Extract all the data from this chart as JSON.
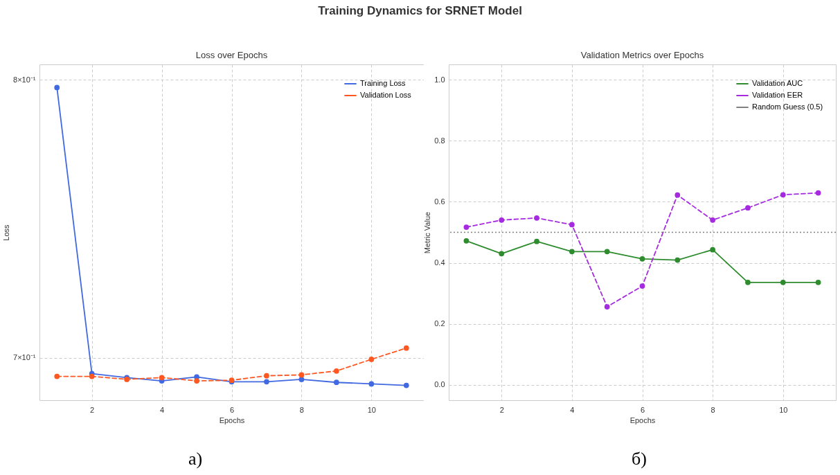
{
  "chart_data": [
    {
      "type": "line",
      "title": "Loss over Epochs",
      "xlabel": "Epochs",
      "ylabel": "Loss",
      "x": [
        1,
        2,
        3,
        4,
        5,
        6,
        7,
        8,
        9,
        10,
        11
      ],
      "series": [
        {
          "name": "Training Loss",
          "color": "#4169e1",
          "line_style": "solid",
          "values": [
            0.797,
            0.6947,
            0.6934,
            0.6923,
            0.6936,
            0.692,
            0.692,
            0.6928,
            0.6918,
            0.6913,
            0.6908
          ]
        },
        {
          "name": "Validation Loss",
          "color": "#ff5722",
          "line_style": "dashed",
          "values": [
            0.6938,
            0.6938,
            0.6928,
            0.6934,
            0.6923,
            0.6925,
            0.694,
            0.6943,
            0.6956,
            0.6995,
            0.7033
          ]
        }
      ],
      "xlim": [
        0.5,
        11.5
      ],
      "xticks": [
        2,
        4,
        6,
        8,
        10
      ],
      "ylim": [
        0.6859,
        0.8059
      ],
      "yticks": [
        {
          "value": 0.7,
          "label": "7×10⁻¹"
        },
        {
          "value": 0.8,
          "label": "8×10⁻¹"
        }
      ],
      "log": true,
      "grid": true,
      "legend": "top right",
      "marker": "circle",
      "annotations": [
        "Training Dynamics for SRNET Model",
        "а)"
      ]
    },
    {
      "type": "line",
      "title": "Validation Metrics over Epochs",
      "xlabel": "Epochs",
      "ylabel": "Metric Value",
      "x": [
        1,
        2,
        3,
        4,
        5,
        6,
        7,
        8,
        9,
        10,
        11
      ],
      "series": [
        {
          "name": "Validation AUC",
          "color": "#2e8b2e",
          "line_style": "solid",
          "values": [
            0.472,
            0.43,
            0.47,
            0.437,
            0.437,
            0.413,
            0.409,
            0.443,
            0.336,
            0.336,
            0.336
          ]
        },
        {
          "name": "Validation EER",
          "color": "#a52ae0",
          "line_style": "dashed",
          "values": [
            0.517,
            0.54,
            0.547,
            0.525,
            0.256,
            0.324,
            0.622,
            0.54,
            0.58,
            0.623,
            0.629
          ]
        }
      ],
      "ref_lines": [
        {
          "axis": "y",
          "value": 0.5,
          "label": "Random Guess (0.5)",
          "color": "#808080",
          "line_style": "dotted"
        }
      ],
      "xlim": [
        0.5,
        11.5
      ],
      "xticks": [
        2,
        4,
        6,
        8,
        10
      ],
      "ylim": [
        -0.05,
        1.05
      ],
      "yticks": [
        {
          "value": 0,
          "label": "0.0"
        },
        0.2,
        0.4,
        0.6,
        0.8,
        {
          "value": 1,
          "label": "1.0"
        }
      ],
      "grid": true,
      "legend": "top right",
      "marker": "circle",
      "annotations": [
        "б)"
      ]
    }
  ]
}
